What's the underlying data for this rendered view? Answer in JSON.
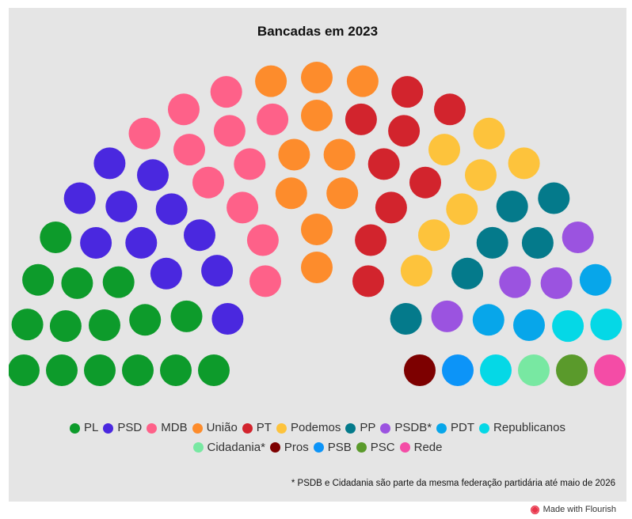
{
  "chart_data": {
    "type": "parliament",
    "title": "Bancadas em 2023",
    "parties": [
      {
        "name": "PL",
        "seats": 15,
        "color": "#0d9b2b"
      },
      {
        "name": "PSD",
        "seats": 11,
        "color": "#4a28df"
      },
      {
        "name": "MDB",
        "seats": 11,
        "color": "#fe6189"
      },
      {
        "name": "União",
        "seats": 10,
        "color": "#fd8c2c"
      },
      {
        "name": "PT",
        "seats": 9,
        "color": "#d2242d"
      },
      {
        "name": "Podemos",
        "seats": 7,
        "color": "#fdc33c"
      },
      {
        "name": "PP",
        "seats": 6,
        "color": "#047a8b"
      },
      {
        "name": "PSDB*",
        "seats": 4,
        "color": "#9b53e0"
      },
      {
        "name": "PDT",
        "seats": 3,
        "color": "#07a6ea"
      },
      {
        "name": "Republicanos",
        "seats": 3,
        "color": "#05d8e6"
      },
      {
        "name": "Cidadania*",
        "seats": 1,
        "color": "#78e8a2"
      },
      {
        "name": "Pros",
        "seats": 1,
        "color": "#7d0000"
      },
      {
        "name": "PSB",
        "seats": 1,
        "color": "#0c94f8"
      },
      {
        "name": "PSC",
        "seats": 1,
        "color": "#5a9a2b"
      },
      {
        "name": "Rede",
        "seats": 1,
        "color": "#f44ca6"
      }
    ],
    "total_seats": 84
  },
  "footnote": "* PSDB e Cidadania são parte da mesma federação partidária até maio de 2026",
  "credit": "Made with Flourish"
}
